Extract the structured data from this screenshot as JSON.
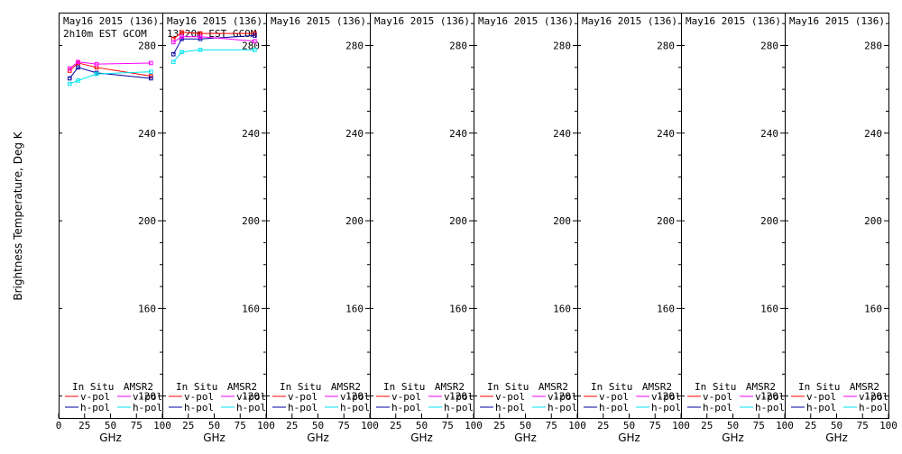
{
  "figure": {
    "ylabel": "Brightness Temperature, Deg K",
    "xlabel": "GHz"
  },
  "legend": {
    "in_situ_label": "In Situ",
    "amsr2_label": "AMSR2",
    "vpol_label": "v-pol",
    "hpol_label": "h-pol"
  },
  "colors": {
    "insitu_v": "#ff0000",
    "insitu_h": "#0000a0",
    "amsr2_v": "#ff00ff",
    "amsr2_h": "#00e5ee"
  },
  "chart_data": [
    {
      "type": "line",
      "title_line1": "May16 2015 (136)",
      "title_line2": "2h10m EST GCOM",
      "xlim": [
        0,
        100
      ],
      "ylim": [
        110,
        295
      ],
      "xticks": [
        0,
        25,
        50,
        75,
        100
      ],
      "yticks": [
        120,
        160,
        200,
        240,
        280
      ],
      "series": [
        {
          "name": "In Situ v-pol",
          "color_key": "insitu_v",
          "x": [
            10.65,
            18.7,
            36.5,
            89
          ],
          "y": [
            268.5,
            272,
            270,
            266
          ]
        },
        {
          "name": "In Situ h-pol",
          "color_key": "insitu_h",
          "x": [
            10.65,
            18.7,
            36.5,
            89
          ],
          "y": [
            265,
            270,
            267.5,
            265
          ]
        },
        {
          "name": "AMSR2 v-pol",
          "color_key": "amsr2_v",
          "x": [
            10.65,
            18.7,
            36.5,
            89
          ],
          "y": [
            269.5,
            272.5,
            271.5,
            272
          ]
        },
        {
          "name": "AMSR2 h-pol",
          "color_key": "amsr2_h",
          "x": [
            10.65,
            18.7,
            36.5,
            89
          ],
          "y": [
            262.5,
            264,
            267,
            268
          ]
        }
      ]
    },
    {
      "type": "line",
      "title_line1": "May16 2015 (136)",
      "title_line2": "13h20m EST GCOM",
      "xlim": [
        0,
        100
      ],
      "ylim": [
        110,
        295
      ],
      "xticks": [
        0,
        25,
        50,
        75,
        100
      ],
      "yticks": [
        120,
        160,
        200,
        240,
        280
      ],
      "series": [
        {
          "name": "In Situ v-pol",
          "color_key": "insitu_v",
          "x": [
            10.65,
            18.7,
            36.5,
            89
          ],
          "y": [
            283,
            286,
            285.5,
            285.5
          ]
        },
        {
          "name": "In Situ h-pol",
          "color_key": "insitu_h",
          "x": [
            10.65,
            18.7,
            36.5,
            89
          ],
          "y": [
            276,
            283,
            283,
            284.5
          ]
        },
        {
          "name": "AMSR2 v-pol",
          "color_key": "amsr2_v",
          "x": [
            10.65,
            18.7,
            36.5,
            89
          ],
          "y": [
            281.5,
            284,
            284,
            282
          ]
        },
        {
          "name": "AMSR2 h-pol",
          "color_key": "amsr2_h",
          "x": [
            10.65,
            18.7,
            36.5,
            89
          ],
          "y": [
            272.5,
            277,
            278,
            278
          ]
        }
      ]
    },
    {
      "type": "line",
      "title_line1": "May16 2015 (136)",
      "title_line2": "",
      "xlim": [
        0,
        100
      ],
      "ylim": [
        110,
        295
      ],
      "xticks": [
        0,
        25,
        50,
        75,
        100
      ],
      "yticks": [
        120,
        160,
        200,
        240,
        280
      ],
      "series": []
    },
    {
      "type": "line",
      "title_line1": "May16 2015 (136)",
      "title_line2": "",
      "xlim": [
        0,
        100
      ],
      "ylim": [
        110,
        295
      ],
      "xticks": [
        0,
        25,
        50,
        75,
        100
      ],
      "yticks": [
        120,
        160,
        200,
        240,
        280
      ],
      "series": []
    },
    {
      "type": "line",
      "title_line1": "May16 2015 (136)",
      "title_line2": "",
      "xlim": [
        0,
        100
      ],
      "ylim": [
        110,
        295
      ],
      "xticks": [
        0,
        25,
        50,
        75,
        100
      ],
      "yticks": [
        120,
        160,
        200,
        240,
        280
      ],
      "series": []
    },
    {
      "type": "line",
      "title_line1": "May16 2015 (136)",
      "title_line2": "",
      "xlim": [
        0,
        100
      ],
      "ylim": [
        110,
        295
      ],
      "xticks": [
        0,
        25,
        50,
        75,
        100
      ],
      "yticks": [
        120,
        160,
        200,
        240,
        280
      ],
      "series": []
    },
    {
      "type": "line",
      "title_line1": "May16 2015 (136)",
      "title_line2": "",
      "xlim": [
        0,
        100
      ],
      "ylim": [
        110,
        295
      ],
      "xticks": [
        0,
        25,
        50,
        75,
        100
      ],
      "yticks": [
        120,
        160,
        200,
        240,
        280
      ],
      "series": []
    },
    {
      "type": "line",
      "title_line1": "May16 2015 (136)",
      "title_line2": "",
      "xlim": [
        0,
        100
      ],
      "ylim": [
        110,
        295
      ],
      "xticks": [
        0,
        25,
        50,
        75,
        100
      ],
      "yticks": [
        120,
        160,
        200,
        240,
        280
      ],
      "series": []
    }
  ]
}
